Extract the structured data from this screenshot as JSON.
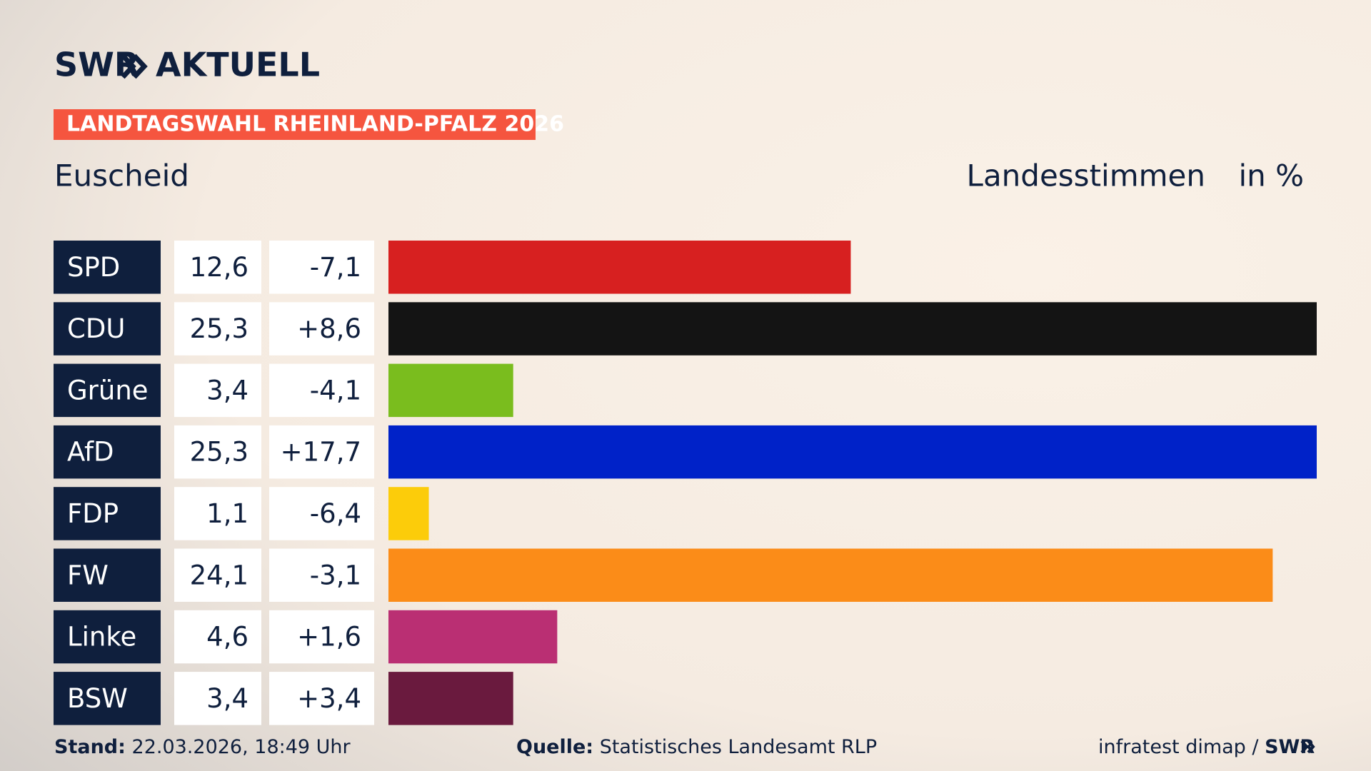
{
  "header": {
    "brand": "SWR",
    "brand_suffix": "AKTUELL",
    "banner": "LANDTAGSWAHL RHEINLAND-PFALZ 2026"
  },
  "chart_data": {
    "type": "bar",
    "title": "Euscheid",
    "value_title": "Landesstimmen",
    "unit": "in %",
    "categories": [
      "SPD",
      "CDU",
      "Grüne",
      "AfD",
      "FDP",
      "FW",
      "Linke",
      "BSW"
    ],
    "values": [
      12.6,
      25.3,
      3.4,
      25.3,
      1.1,
      24.1,
      4.6,
      3.4
    ],
    "value_labels": [
      "12,6",
      "25,3",
      "3,4",
      "25,3",
      "1,1",
      "24,1",
      "4,6",
      "3,4"
    ],
    "changes": [
      -7.1,
      8.6,
      -4.1,
      17.7,
      -6.4,
      -3.1,
      1.6,
      3.4
    ],
    "change_labels": [
      "-7,1",
      "+8,6",
      "-4,1",
      "+17,7",
      "-6,4",
      "-3,1",
      "+1,6",
      "+3,4"
    ],
    "colors": [
      "#d72020",
      "#141414",
      "#7abd1e",
      "#0022c8",
      "#fccc0a",
      "#fb8c18",
      "#ba2f73",
      "#6a1a3e"
    ]
  },
  "footer": {
    "stand_label": "Stand:",
    "stand": "22.03.2026, 18:49 Uhr",
    "source_label": "Quelle:",
    "source": "Statistisches Landesamt RLP",
    "credit": "infratest dimap /",
    "credit_brand": "SWR"
  }
}
